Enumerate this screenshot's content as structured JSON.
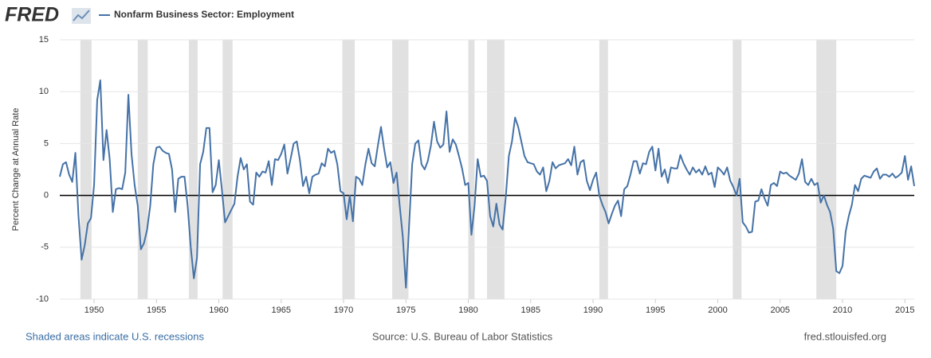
{
  "brand": "FRED",
  "chart_data": {
    "type": "line",
    "y_label": "Percent Change at Annual Rate",
    "x": [
      1947.25,
      1947.5,
      1947.75,
      1948,
      1948.25,
      1948.5,
      1948.75,
      1949,
      1949.25,
      1949.5,
      1949.75,
      1950,
      1950.25,
      1950.5,
      1950.75,
      1951,
      1951.25,
      1951.5,
      1951.75,
      1952,
      1952.25,
      1952.5,
      1952.75,
      1953,
      1953.25,
      1953.5,
      1953.75,
      1954,
      1954.25,
      1954.5,
      1954.75,
      1955,
      1955.25,
      1955.5,
      1955.75,
      1956,
      1956.25,
      1956.5,
      1956.75,
      1957,
      1957.25,
      1957.5,
      1957.75,
      1958,
      1958.25,
      1958.5,
      1958.75,
      1959,
      1959.25,
      1959.5,
      1959.75,
      1960,
      1960.25,
      1960.5,
      1960.75,
      1961,
      1961.25,
      1961.5,
      1961.75,
      1962,
      1962.25,
      1962.5,
      1962.75,
      1963,
      1963.25,
      1963.5,
      1963.75,
      1964,
      1964.25,
      1964.5,
      1964.75,
      1965,
      1965.25,
      1965.5,
      1965.75,
      1966,
      1966.25,
      1966.5,
      1966.75,
      1967,
      1967.25,
      1967.5,
      1967.75,
      1968,
      1968.25,
      1968.5,
      1968.75,
      1969,
      1969.25,
      1969.5,
      1969.75,
      1970,
      1970.25,
      1970.5,
      1970.75,
      1971,
      1971.25,
      1971.5,
      1971.75,
      1972,
      1972.25,
      1972.5,
      1972.75,
      1973,
      1973.25,
      1973.5,
      1973.75,
      1974,
      1974.25,
      1974.5,
      1974.75,
      1975,
      1975.25,
      1975.5,
      1975.75,
      1976,
      1976.25,
      1976.5,
      1976.75,
      1977,
      1977.25,
      1977.5,
      1977.75,
      1978,
      1978.25,
      1978.5,
      1978.75,
      1979,
      1979.25,
      1979.5,
      1979.75,
      1980,
      1980.25,
      1980.5,
      1980.75,
      1981,
      1981.25,
      1981.5,
      1981.75,
      1982,
      1982.25,
      1982.5,
      1982.75,
      1983,
      1983.25,
      1983.5,
      1983.75,
      1984,
      1984.25,
      1984.5,
      1984.75,
      1985,
      1985.25,
      1985.5,
      1985.75,
      1986,
      1986.25,
      1986.5,
      1986.75,
      1987,
      1987.25,
      1987.5,
      1987.75,
      1988,
      1988.25,
      1988.5,
      1988.75,
      1989,
      1989.25,
      1989.5,
      1989.75,
      1990,
      1990.25,
      1990.5,
      1990.75,
      1991,
      1991.25,
      1991.5,
      1991.75,
      1992,
      1992.25,
      1992.5,
      1992.75,
      1993,
      1993.25,
      1993.5,
      1993.75,
      1994,
      1994.25,
      1994.5,
      1994.75,
      1995,
      1995.25,
      1995.5,
      1995.75,
      1996,
      1996.25,
      1996.5,
      1996.75,
      1997,
      1997.25,
      1997.5,
      1997.75,
      1998,
      1998.25,
      1998.5,
      1998.75,
      1999,
      1999.25,
      1999.5,
      1999.75,
      2000,
      2000.25,
      2000.5,
      2000.75,
      2001,
      2001.25,
      2001.5,
      2001.75,
      2002,
      2002.25,
      2002.5,
      2002.75,
      2003,
      2003.25,
      2003.5,
      2003.75,
      2004,
      2004.25,
      2004.5,
      2004.75,
      2005,
      2005.25,
      2005.5,
      2005.75,
      2006,
      2006.25,
      2006.5,
      2006.75,
      2007,
      2007.25,
      2007.5,
      2007.75,
      2008,
      2008.25,
      2008.5,
      2008.75,
      2009,
      2009.25,
      2009.5,
      2009.75,
      2010,
      2010.25,
      2010.5,
      2010.75,
      2011,
      2011.25,
      2011.5,
      2011.75,
      2012,
      2012.25,
      2012.5,
      2012.75,
      2013,
      2013.25,
      2013.5,
      2013.75,
      2014,
      2014.25,
      2014.5,
      2014.75,
      2015,
      2015.25,
      2015.5,
      2015.75
    ],
    "series": [
      {
        "name": "Nonfarm Business Sector: Employment",
        "color": "#4572a7",
        "values": [
          1.8,
          3.0,
          3.2,
          2.0,
          1.3,
          4.1,
          -2.0,
          -6.2,
          -4.8,
          -2.7,
          -2.2,
          1.0,
          9.2,
          11.1,
          3.4,
          6.3,
          3.5,
          -1.6,
          0.6,
          0.7,
          0.6,
          2.2,
          9.7,
          4.0,
          1.0,
          -1.0,
          -5.2,
          -4.6,
          -3.3,
          -1.0,
          3.0,
          4.6,
          4.7,
          4.3,
          4.1,
          4.0,
          2.5,
          -1.6,
          1.6,
          1.8,
          1.8,
          -1.0,
          -5.0,
          -8.0,
          -6.0,
          3.0,
          4.2,
          6.5,
          6.5,
          0.3,
          1.0,
          3.4,
          0.5,
          -2.6,
          -2.0,
          -1.4,
          -0.8,
          1.8,
          3.6,
          2.5,
          3.0,
          -0.6,
          -0.9,
          2.2,
          1.8,
          2.3,
          2.2,
          3.3,
          1.0,
          3.5,
          3.4,
          4.0,
          4.9,
          2.1,
          3.5,
          5.0,
          5.2,
          3.4,
          0.9,
          1.8,
          0.2,
          1.8,
          2.0,
          2.1,
          3.1,
          2.8,
          4.5,
          4.1,
          4.3,
          3.0,
          0.4,
          0.2,
          -2.3,
          0.0,
          -2.5,
          1.8,
          1.6,
          1.0,
          3.0,
          4.5,
          3.1,
          2.8,
          4.8,
          6.6,
          4.5,
          2.7,
          3.2,
          1.2,
          2.2,
          -1.0,
          -4.0,
          -8.9,
          -3.0,
          3.0,
          5.0,
          5.3,
          3.0,
          2.5,
          3.3,
          4.8,
          7.1,
          5.2,
          4.6,
          4.9,
          8.1,
          4.2,
          5.4,
          4.9,
          3.8,
          2.6,
          1.0,
          1.2,
          -3.8,
          -1.0,
          3.5,
          1.8,
          1.9,
          1.4,
          -2.0,
          -3.0,
          -0.8,
          -2.8,
          -3.3,
          -0.2,
          3.8,
          5.2,
          7.5,
          6.6,
          5.2,
          3.8,
          3.2,
          3.1,
          3.0,
          2.3,
          2.0,
          2.7,
          0.4,
          1.4,
          3.2,
          2.6,
          2.9,
          3.0,
          3.1,
          3.5,
          2.9,
          4.7,
          2.0,
          3.2,
          3.4,
          1.4,
          0.5,
          1.5,
          2.2,
          0.0,
          -0.9,
          -1.6,
          -2.7,
          -1.8,
          -1.0,
          -0.5,
          -2.0,
          0.6,
          0.9,
          2.0,
          3.3,
          3.3,
          2.1,
          3.1,
          3.0,
          4.2,
          4.7,
          2.4,
          4.5,
          1.8,
          2.5,
          1.2,
          2.7,
          2.6,
          2.6,
          3.9,
          3.1,
          2.5,
          2.0,
          2.7,
          2.2,
          2.5,
          2.0,
          2.8,
          2.0,
          2.2,
          0.8,
          2.7,
          2.4,
          2.0,
          2.7,
          1.4,
          0.8,
          0.0,
          1.6,
          -2.6,
          -3.0,
          -3.6,
          -3.5,
          -0.6,
          -0.5,
          0.6,
          -0.3,
          -1.0,
          1.0,
          1.2,
          0.9,
          2.3,
          2.1,
          2.2,
          1.9,
          1.7,
          1.5,
          2.1,
          3.5,
          1.3,
          1.0,
          1.6,
          1.0,
          1.2,
          -0.7,
          0.0,
          -0.9,
          -1.6,
          -3.2,
          -7.3,
          -7.5,
          -6.8,
          -3.5,
          -2.0,
          -0.9,
          1.0,
          0.4,
          1.6,
          1.9,
          1.8,
          1.7,
          2.3,
          2.6,
          1.6,
          2.0,
          2.0,
          1.8,
          2.1,
          1.7,
          1.9,
          2.2,
          3.8,
          1.5,
          2.8,
          0.9
        ]
      }
    ],
    "recessions": [
      [
        1948.9,
        1949.8
      ],
      [
        1953.5,
        1954.3
      ],
      [
        1957.6,
        1958.3
      ],
      [
        1960.3,
        1961.1
      ],
      [
        1969.9,
        1970.9
      ],
      [
        1973.9,
        1975.2
      ],
      [
        1980.0,
        1980.5
      ],
      [
        1981.5,
        1982.9
      ],
      [
        1990.5,
        1991.2
      ],
      [
        2001.2,
        2001.9
      ],
      [
        2007.9,
        2009.5
      ]
    ],
    "xlim": [
      1947.25,
      2015.75
    ],
    "xticks": [
      1950,
      1955,
      1960,
      1965,
      1970,
      1975,
      1980,
      1985,
      1990,
      1995,
      2000,
      2005,
      2010,
      2015
    ],
    "ylim": [
      -10,
      15
    ],
    "yticks": [
      -10,
      -5,
      0,
      5,
      10,
      15
    ],
    "grid": true,
    "recession_note": "Shaded areas indicate U.S. recessions",
    "source": "Source: U.S. Bureau of Labor Statistics",
    "site": "fred.stlouisfed.org"
  }
}
